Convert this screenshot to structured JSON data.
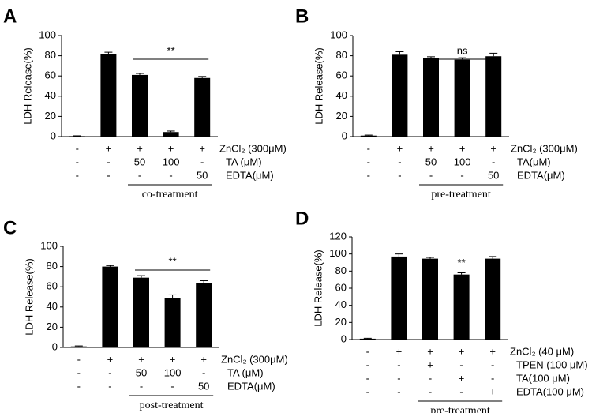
{
  "chart_data": [
    {
      "type": "bar",
      "panel": "A",
      "ylabel": "LDH Release(%)",
      "ylim": [
        0,
        100
      ],
      "yticks": [
        0,
        20,
        40,
        60,
        80,
        100
      ],
      "values": [
        0.5,
        82,
        61,
        4.5,
        58
      ],
      "errors": [
        0.3,
        1.5,
        1.5,
        1,
        1.5
      ],
      "color": "#000000",
      "annotation": "**",
      "rows": [
        {
          "label": "ZnCl₂ (300μM)",
          "cells": [
            "-",
            "+",
            "+",
            "+",
            "+"
          ]
        },
        {
          "label": "TA (μM)",
          "cells": [
            "-",
            "-",
            "50",
            "100",
            "-"
          ]
        },
        {
          "label": "EDTA(μM)",
          "cells": [
            "-",
            "-",
            "-",
            "-",
            "50"
          ]
        }
      ],
      "treatment": "co-treatment"
    },
    {
      "type": "bar",
      "panel": "B",
      "ylabel": "LDH Release(%)",
      "ylim": [
        0,
        100
      ],
      "yticks": [
        0,
        20,
        40,
        60,
        80,
        100
      ],
      "values": [
        1,
        81,
        77.5,
        76,
        79.5
      ],
      "errors": [
        0.5,
        3,
        1.5,
        2,
        3
      ],
      "color": "#000000",
      "annotation": "ns",
      "rows": [
        {
          "label": "ZnCl₂ (300μM)",
          "cells": [
            "-",
            "+",
            "+",
            "+",
            "+"
          ]
        },
        {
          "label": "TA(μM)",
          "cells": [
            "-",
            "-",
            "50",
            "100",
            "-"
          ]
        },
        {
          "label": "EDTA(μM)",
          "cells": [
            "-",
            "-",
            "-",
            "-",
            "50"
          ]
        }
      ],
      "treatment": "pre-treatment"
    },
    {
      "type": "bar",
      "panel": "C",
      "ylabel": "LDH Release(%)",
      "ylim": [
        0,
        100
      ],
      "yticks": [
        0,
        20,
        40,
        60,
        80,
        100
      ],
      "values": [
        1,
        80,
        69,
        49,
        63.5
      ],
      "errors": [
        0.5,
        1,
        2,
        3,
        2.5
      ],
      "color": "#000000",
      "annotation": "**",
      "rows": [
        {
          "label": "ZnCl₂ (300μM)",
          "cells": [
            "-",
            "+",
            "+",
            "+",
            "+"
          ]
        },
        {
          "label": "TA (μM)",
          "cells": [
            "-",
            "-",
            "50",
            "100",
            "-"
          ]
        },
        {
          "label": "EDTA(μM)",
          "cells": [
            "-",
            "-",
            "-",
            "-",
            "50"
          ]
        }
      ],
      "treatment": "post-treatment"
    },
    {
      "type": "bar",
      "panel": "D",
      "ylabel": "LDH Release(%)",
      "ylim": [
        0,
        120
      ],
      "yticks": [
        0,
        20,
        40,
        60,
        80,
        100,
        120
      ],
      "values": [
        1,
        97,
        94.5,
        76,
        94.5
      ],
      "errors": [
        0.5,
        3,
        1.5,
        2,
        2.5
      ],
      "color": "#000000",
      "annotation": "**",
      "rows": [
        {
          "label": "ZnCl₂ (40 μM)",
          "cells": [
            "-",
            "+",
            "+",
            "+",
            "+"
          ]
        },
        {
          "label": "TPEN (100 μM)",
          "cells": [
            "-",
            "-",
            "+",
            "-",
            "-"
          ]
        },
        {
          "label": "TA(100 μM)",
          "cells": [
            "-",
            "-",
            "-",
            "+",
            "-"
          ]
        },
        {
          "label": "EDTA(100 μM)",
          "cells": [
            "-",
            "-",
            "-",
            "-",
            "+"
          ]
        }
      ],
      "treatment": "pre-treatment"
    }
  ]
}
